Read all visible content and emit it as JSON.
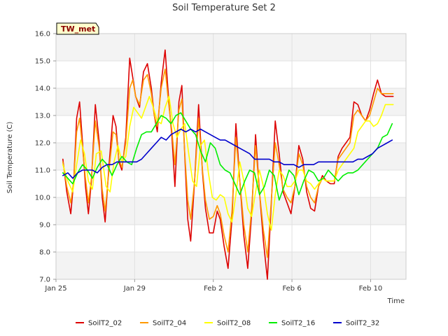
{
  "chart_data": {
    "type": "line",
    "title": "Soil Temperature Set 2",
    "xlabel": "Time",
    "ylabel": "Soil Temperature (C)",
    "site_label": "TW_met",
    "x_start": "Jan 25",
    "x_range_days": [
      0,
      17.8
    ],
    "ylim": [
      7.0,
      16.0
    ],
    "yticks": [
      7.0,
      8.0,
      9.0,
      10.0,
      11.0,
      12.0,
      13.0,
      14.0,
      15.0,
      16.0
    ],
    "xticks": [
      {
        "label": "Jan 25",
        "day": 0
      },
      {
        "label": "Jan 29",
        "day": 4
      },
      {
        "label": "Feb 2",
        "day": 8
      },
      {
        "label": "Feb 6",
        "day": 12
      },
      {
        "label": "Feb 10",
        "day": 16
      }
    ],
    "grid": true,
    "banded_background": true,
    "legend_position": "bottom",
    "series": [
      {
        "name": "SoilT2_02",
        "color": "#dd0000",
        "x": [
          0.35,
          0.55,
          0.75,
          0.9,
          1.05,
          1.2,
          1.35,
          1.5,
          1.65,
          1.8,
          2.0,
          2.2,
          2.35,
          2.5,
          2.7,
          2.9,
          3.05,
          3.2,
          3.35,
          3.55,
          3.75,
          3.9,
          4.05,
          4.25,
          4.45,
          4.65,
          4.85,
          5.0,
          5.15,
          5.35,
          5.55,
          5.75,
          5.9,
          6.05,
          6.25,
          6.4,
          6.55,
          6.7,
          6.85,
          7.05,
          7.25,
          7.45,
          7.6,
          7.8,
          8.0,
          8.2,
          8.35,
          8.55,
          8.75,
          8.95,
          9.15,
          9.35,
          9.55,
          9.75,
          9.95,
          10.15,
          10.35,
          10.55,
          10.75,
          10.95,
          11.15,
          11.35,
          11.55,
          11.75,
          11.95,
          12.15,
          12.35,
          12.55,
          12.75,
          12.95,
          13.15,
          13.35,
          13.55,
          13.75,
          13.95,
          14.15,
          14.35,
          14.55,
          14.75,
          14.95,
          15.15,
          15.35,
          15.55,
          15.75,
          15.95,
          16.15,
          16.35,
          16.55,
          16.75,
          16.95,
          17.15
        ],
        "y": [
          11.4,
          10.2,
          9.4,
          10.6,
          12.9,
          13.5,
          12.0,
          10.4,
          9.4,
          10.6,
          13.4,
          12.0,
          10.0,
          9.1,
          11.2,
          13.0,
          12.6,
          11.3,
          11.0,
          12.2,
          15.1,
          14.4,
          13.7,
          13.3,
          14.6,
          14.9,
          14.0,
          13.0,
          12.4,
          14.2,
          15.4,
          13.4,
          12.2,
          10.4,
          13.5,
          14.1,
          11.5,
          9.2,
          8.4,
          10.6,
          13.4,
          10.9,
          9.6,
          8.7,
          8.7,
          9.5,
          9.2,
          8.2,
          7.4,
          9.2,
          12.7,
          10.6,
          8.6,
          7.4,
          9.4,
          12.3,
          10.2,
          8.4,
          7.0,
          9.8,
          12.8,
          11.6,
          10.2,
          9.8,
          9.4,
          10.4,
          11.9,
          11.4,
          10.2,
          9.6,
          9.5,
          10.4,
          10.8,
          10.6,
          10.5,
          10.5,
          11.5,
          11.8,
          12.0,
          12.2,
          13.5,
          13.4,
          13.0,
          12.8,
          13.2,
          13.8,
          14.3,
          13.8,
          13.7,
          13.7,
          13.7
        ]
      },
      {
        "name": "SoilT2_04",
        "color": "#ff9900",
        "x": [
          0.35,
          0.55,
          0.75,
          0.9,
          1.05,
          1.2,
          1.35,
          1.5,
          1.65,
          1.8,
          2.0,
          2.2,
          2.35,
          2.5,
          2.7,
          2.9,
          3.05,
          3.2,
          3.35,
          3.55,
          3.75,
          3.9,
          4.05,
          4.25,
          4.45,
          4.65,
          4.85,
          5.0,
          5.15,
          5.35,
          5.55,
          5.75,
          5.9,
          6.05,
          6.25,
          6.4,
          6.55,
          6.7,
          6.85,
          7.05,
          7.25,
          7.45,
          7.6,
          7.8,
          8.0,
          8.2,
          8.35,
          8.55,
          8.75,
          8.95,
          9.15,
          9.35,
          9.55,
          9.75,
          9.95,
          10.15,
          10.35,
          10.55,
          10.75,
          10.95,
          11.15,
          11.35,
          11.55,
          11.75,
          11.95,
          12.15,
          12.35,
          12.55,
          12.75,
          12.95,
          13.15,
          13.35,
          13.55,
          13.75,
          13.95,
          14.15,
          14.35,
          14.55,
          14.75,
          14.95,
          15.15,
          15.35,
          15.55,
          15.75,
          15.95,
          16.15,
          16.35,
          16.55,
          16.75,
          16.95,
          17.15
        ],
        "y": [
          11.3,
          10.4,
          9.8,
          10.6,
          12.4,
          12.9,
          11.8,
          10.7,
          9.8,
          10.7,
          12.8,
          11.8,
          10.3,
          9.5,
          11.0,
          12.4,
          12.3,
          11.4,
          11.1,
          12.0,
          14.0,
          14.3,
          13.7,
          13.4,
          14.3,
          14.5,
          13.8,
          13.0,
          12.6,
          14.0,
          14.7,
          13.3,
          12.4,
          11.2,
          13.2,
          13.6,
          11.6,
          9.9,
          9.2,
          10.6,
          12.9,
          11.0,
          9.9,
          9.2,
          9.3,
          9.7,
          9.4,
          8.6,
          8.0,
          9.5,
          12.2,
          10.6,
          9.0,
          8.0,
          9.6,
          11.9,
          10.2,
          8.8,
          7.8,
          9.9,
          12.0,
          11.2,
          10.3,
          10.0,
          9.8,
          10.4,
          11.6,
          11.2,
          10.4,
          10.0,
          9.8,
          10.4,
          10.7,
          10.6,
          10.6,
          10.6,
          11.4,
          11.6,
          11.8,
          12.0,
          13.0,
          13.2,
          13.0,
          12.8,
          13.0,
          13.5,
          14.0,
          13.8,
          13.8,
          13.8,
          13.8
        ]
      },
      {
        "name": "SoilT2_08",
        "color": "#ffff00",
        "x": [
          0.35,
          0.6,
          0.85,
          1.05,
          1.25,
          1.45,
          1.65,
          1.85,
          2.05,
          2.3,
          2.55,
          2.75,
          2.95,
          3.15,
          3.35,
          3.55,
          3.75,
          3.95,
          4.15,
          4.35,
          4.55,
          4.75,
          4.95,
          5.15,
          5.35,
          5.55,
          5.75,
          5.95,
          6.15,
          6.35,
          6.55,
          6.75,
          6.95,
          7.15,
          7.35,
          7.55,
          7.75,
          7.95,
          8.15,
          8.35,
          8.55,
          8.75,
          8.95,
          9.15,
          9.35,
          9.55,
          9.75,
          9.95,
          10.15,
          10.35,
          10.55,
          10.75,
          10.95,
          11.15,
          11.35,
          11.55,
          11.75,
          11.95,
          12.15,
          12.35,
          12.55,
          12.75,
          12.95,
          13.15,
          13.35,
          13.55,
          13.75,
          13.95,
          14.15,
          14.35,
          14.55,
          14.75,
          14.95,
          15.15,
          15.35,
          15.55,
          15.75,
          15.95,
          16.15,
          16.35,
          16.55,
          16.75,
          16.95,
          17.15
        ],
        "y": [
          11.2,
          10.6,
          10.2,
          11.2,
          12.1,
          11.6,
          10.6,
          10.3,
          11.6,
          11.7,
          10.4,
          10.2,
          11.3,
          11.9,
          11.3,
          11.5,
          12.6,
          13.3,
          13.1,
          12.9,
          13.3,
          13.7,
          13.3,
          12.8,
          12.7,
          13.3,
          13.7,
          12.7,
          12.2,
          12.5,
          12.7,
          11.6,
          10.6,
          10.4,
          11.9,
          12.1,
          10.9,
          10.0,
          9.9,
          10.1,
          10.0,
          9.4,
          9.1,
          10.1,
          11.3,
          10.6,
          9.6,
          9.3,
          10.2,
          11.0,
          10.4,
          9.4,
          8.8,
          10.1,
          11.0,
          10.8,
          10.4,
          10.4,
          10.6,
          11.0,
          11.0,
          10.6,
          10.5,
          10.3,
          10.5,
          10.7,
          10.6,
          10.6,
          10.6,
          11.0,
          11.2,
          11.4,
          11.6,
          11.8,
          12.4,
          12.6,
          12.8,
          12.8,
          12.6,
          12.7,
          13.0,
          13.4,
          13.4,
          13.4
        ]
      },
      {
        "name": "SoilT2_16",
        "color": "#00ee00",
        "x": [
          0.35,
          0.6,
          0.85,
          1.1,
          1.35,
          1.6,
          1.85,
          2.1,
          2.35,
          2.6,
          2.85,
          3.1,
          3.35,
          3.6,
          3.85,
          4.1,
          4.35,
          4.6,
          4.85,
          5.1,
          5.35,
          5.6,
          5.85,
          6.1,
          6.35,
          6.6,
          6.85,
          7.1,
          7.35,
          7.6,
          7.85,
          8.1,
          8.35,
          8.6,
          8.85,
          9.1,
          9.35,
          9.6,
          9.85,
          10.1,
          10.35,
          10.6,
          10.85,
          11.1,
          11.35,
          11.6,
          11.85,
          12.1,
          12.35,
          12.6,
          12.85,
          13.1,
          13.35,
          13.6,
          13.85,
          14.1,
          14.35,
          14.6,
          14.85,
          15.1,
          15.35,
          15.6,
          15.85,
          16.1,
          16.35,
          16.6,
          16.85,
          17.1
        ],
        "y": [
          10.9,
          10.7,
          10.5,
          10.9,
          11.2,
          11.0,
          10.7,
          11.1,
          11.4,
          11.2,
          10.8,
          11.2,
          11.5,
          11.3,
          11.2,
          11.8,
          12.3,
          12.4,
          12.4,
          12.7,
          13.0,
          12.9,
          12.7,
          13.0,
          13.1,
          12.8,
          12.5,
          12.3,
          11.7,
          11.3,
          12.0,
          11.8,
          11.2,
          11.0,
          10.9,
          10.5,
          10.1,
          10.6,
          11.0,
          10.9,
          10.1,
          10.4,
          11.0,
          10.8,
          9.9,
          10.4,
          11.0,
          10.8,
          10.1,
          10.6,
          11.0,
          10.9,
          10.6,
          10.7,
          11.0,
          10.8,
          10.6,
          10.8,
          10.9,
          10.9,
          11.0,
          11.2,
          11.4,
          11.6,
          11.8,
          12.2,
          12.3,
          12.7
        ]
      },
      {
        "name": "SoilT2_32",
        "color": "#0000cc",
        "x": [
          0.35,
          0.6,
          0.85,
          1.1,
          1.35,
          1.6,
          1.85,
          2.1,
          2.35,
          2.6,
          2.85,
          3.1,
          3.35,
          3.6,
          3.85,
          4.1,
          4.35,
          4.6,
          4.85,
          5.1,
          5.35,
          5.6,
          5.85,
          6.1,
          6.35,
          6.6,
          6.85,
          7.1,
          7.35,
          7.6,
          7.85,
          8.1,
          8.35,
          8.6,
          8.85,
          9.1,
          9.35,
          9.6,
          9.85,
          10.1,
          10.35,
          10.6,
          10.85,
          11.1,
          11.35,
          11.6,
          11.85,
          12.1,
          12.35,
          12.6,
          12.85,
          13.1,
          13.35,
          13.6,
          13.85,
          14.1,
          14.35,
          14.6,
          14.85,
          15.1,
          15.35,
          15.6,
          15.85,
          16.1,
          16.35,
          16.6,
          16.85,
          17.1
        ],
        "y": [
          10.8,
          10.9,
          10.7,
          10.9,
          11.0,
          11.0,
          11.0,
          10.9,
          11.1,
          11.2,
          11.2,
          11.3,
          11.3,
          11.3,
          11.3,
          11.3,
          11.4,
          11.6,
          11.8,
          12.0,
          12.2,
          12.1,
          12.3,
          12.4,
          12.5,
          12.4,
          12.5,
          12.4,
          12.5,
          12.4,
          12.3,
          12.2,
          12.1,
          12.1,
          12.0,
          11.9,
          11.8,
          11.7,
          11.6,
          11.4,
          11.4,
          11.4,
          11.4,
          11.3,
          11.3,
          11.2,
          11.2,
          11.2,
          11.1,
          11.2,
          11.2,
          11.2,
          11.3,
          11.3,
          11.3,
          11.3,
          11.3,
          11.3,
          11.3,
          11.3,
          11.4,
          11.4,
          11.5,
          11.6,
          11.8,
          11.9,
          12.0,
          12.1
        ]
      }
    ]
  }
}
